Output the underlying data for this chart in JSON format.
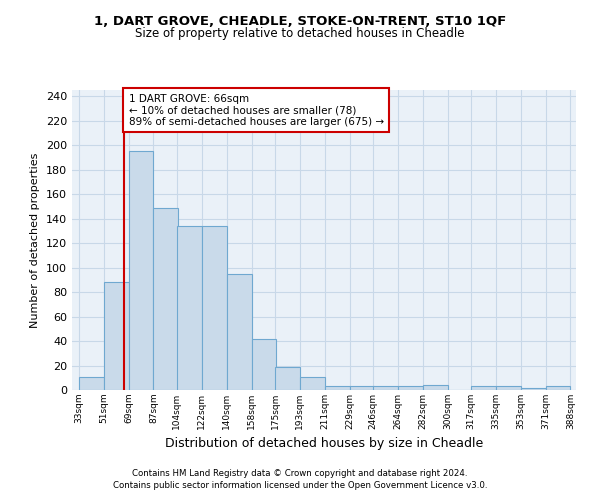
{
  "title_line1": "1, DART GROVE, CHEADLE, STOKE-ON-TRENT, ST10 1QF",
  "title_line2": "Size of property relative to detached houses in Cheadle",
  "xlabel": "Distribution of detached houses by size in Cheadle",
  "ylabel": "Number of detached properties",
  "footnote1": "Contains HM Land Registry data © Crown copyright and database right 2024.",
  "footnote2": "Contains public sector information licensed under the Open Government Licence v3.0.",
  "annotation_title": "1 DART GROVE: 66sqm",
  "annotation_line2": "← 10% of detached houses are smaller (78)",
  "annotation_line3": "89% of semi-detached houses are larger (675) →",
  "property_size": 66,
  "bar_left_edges": [
    33,
    51,
    69,
    87,
    104,
    122,
    140,
    158,
    175,
    193,
    211,
    229,
    246,
    264,
    282,
    300,
    317,
    335,
    353,
    371
  ],
  "bar_heights": [
    11,
    88,
    195,
    149,
    134,
    134,
    95,
    42,
    19,
    11,
    3,
    3,
    3,
    3,
    4,
    0,
    3,
    3,
    2,
    3
  ],
  "bin_width": 18,
  "bar_color": "#c9daea",
  "bar_edge_color": "#6fa8d0",
  "bar_linewidth": 0.8,
  "vline_x": 66,
  "vline_color": "#cc0000",
  "vline_linewidth": 1.5,
  "annotation_box_color": "#cc0000",
  "annotation_box_facecolor": "white",
  "grid_color": "#c8d8e8",
  "background_color": "#eaf1f8",
  "ylim": [
    0,
    245
  ],
  "yticks": [
    0,
    20,
    40,
    60,
    80,
    100,
    120,
    140,
    160,
    180,
    200,
    220,
    240
  ],
  "xlim": [
    28,
    393
  ],
  "xtick_labels": [
    "33sqm",
    "51sqm",
    "69sqm",
    "87sqm",
    "104sqm",
    "122sqm",
    "140sqm",
    "158sqm",
    "175sqm",
    "193sqm",
    "211sqm",
    "229sqm",
    "246sqm",
    "264sqm",
    "282sqm",
    "300sqm",
    "317sqm",
    "335sqm",
    "353sqm",
    "371sqm",
    "388sqm"
  ]
}
